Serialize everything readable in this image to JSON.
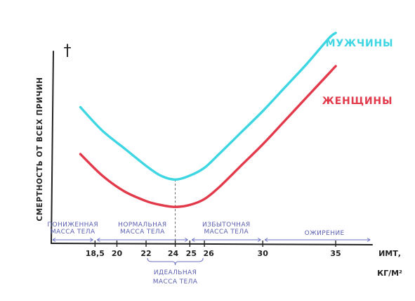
{
  "chart_data": {
    "type": "line",
    "ylabel": "СМЕРТНОСТЬ ОТ ВСЕХ ПРИЧИН",
    "xlabel_line1": "ИМТ,",
    "xlabel_line2": "КГ/М²",
    "y_axis_symbol": "†",
    "x_ticks": [
      {
        "value": 18.5,
        "label": "18,5"
      },
      {
        "value": 20,
        "label": "20"
      },
      {
        "value": 22,
        "label": "22"
      },
      {
        "value": 24,
        "label": "24"
      },
      {
        "value": 25,
        "label": "25"
      },
      {
        "value": 26,
        "label": "26"
      },
      {
        "value": 30,
        "label": "30"
      },
      {
        "value": 35,
        "label": "35"
      }
    ],
    "x_range": [
      15.5,
      37.5
    ],
    "y_range": [
      0,
      100
    ],
    "series": [
      {
        "name": "МУЖЧИНЫ",
        "color": "#3fd6e4",
        "points": [
          [
            17.5,
            61
          ],
          [
            19,
            49
          ],
          [
            20.5,
            40
          ],
          [
            22,
            31
          ],
          [
            23,
            26
          ],
          [
            24,
            24
          ],
          [
            25,
            26
          ],
          [
            26,
            30
          ],
          [
            27,
            37
          ],
          [
            28.5,
            48
          ],
          [
            30,
            59
          ],
          [
            31.5,
            71
          ],
          [
            33,
            83
          ],
          [
            34.5,
            96
          ],
          [
            35,
            99
          ]
        ]
      },
      {
        "name": "ЖЕНЩИНЫ",
        "color": "#e23a4b",
        "points": [
          [
            17.5,
            37
          ],
          [
            19,
            26
          ],
          [
            20.5,
            18
          ],
          [
            22,
            13
          ],
          [
            23,
            11
          ],
          [
            24,
            10
          ],
          [
            25,
            11
          ],
          [
            26,
            14
          ],
          [
            27,
            20
          ],
          [
            28.5,
            31
          ],
          [
            30,
            42
          ],
          [
            31.5,
            54
          ],
          [
            33,
            66
          ],
          [
            34.5,
            78
          ],
          [
            35,
            82
          ]
        ]
      }
    ],
    "ideal_marker_x": 24,
    "ranges": [
      {
        "label_lines": [
          "ПОНИЖЕННАЯ",
          "МАССА ТЕЛА"
        ],
        "from": 15.5,
        "to": 18.5
      },
      {
        "label_lines": [
          "НОРМАЛЬНАЯ",
          "МАССА ТЕЛА"
        ],
        "from": 18.5,
        "to": 25
      },
      {
        "label_lines": [
          "ИЗБЫТОЧНАЯ",
          "МАССА ТЕЛА"
        ],
        "from": 25,
        "to": 30
      },
      {
        "label_lines": [
          "ОЖИРЕНИЕ"
        ],
        "from": 30,
        "to": 37.5
      }
    ],
    "ideal_range": {
      "label_lines": [
        "ИДЕАЛЬНАЯ",
        "МАССА ТЕЛА"
      ],
      "from": 22,
      "to": 26
    },
    "grid": false,
    "legend_placement": "right, next to line ends"
  }
}
